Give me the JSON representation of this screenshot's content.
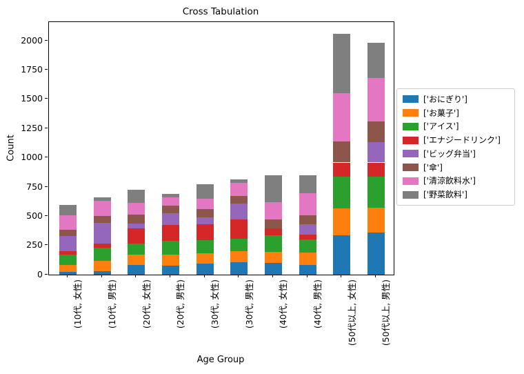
{
  "title": "Cross Tabulation",
  "chart_data": {
    "type": "bar",
    "stacked": true,
    "title": "Cross Tabulation",
    "xlabel": "Age Group",
    "ylabel": "Count",
    "ylim": [
      0,
      2160
    ],
    "yticks": [
      0,
      250,
      500,
      750,
      1000,
      1250,
      1500,
      1750,
      2000
    ],
    "grid": false,
    "legend_position": "right-outside",
    "categories": [
      "(10代, 女性)",
      "(10代, 男性)",
      "(20代, 女性)",
      "(20代, 男性)",
      "(30代, 女性)",
      "(30代, 男性)",
      "(40代, 女性)",
      "(40代, 男性)",
      "(50代以上, 女性)",
      "(50代以上, 男性)"
    ],
    "series": [
      {
        "name": "['おにぎり']",
        "color": "#1f77b4",
        "values": [
          25,
          30,
          85,
          80,
          95,
          110,
          100,
          85,
          340,
          360
        ]
      },
      {
        "name": "['お菓子']",
        "color": "#ff7f0e",
        "values": [
          60,
          90,
          90,
          90,
          90,
          95,
          95,
          105,
          230,
          215
        ]
      },
      {
        "name": "['アイス']",
        "color": "#2ca02c",
        "values": [
          85,
          110,
          90,
          120,
          110,
          105,
          140,
          110,
          270,
          265
        ]
      },
      {
        "name": "['エナジードリンク']",
        "color": "#d62728",
        "values": [
          30,
          40,
          130,
          135,
          140,
          165,
          60,
          45,
          120,
          120
        ]
      },
      {
        "name": "['ビッグ弁当']",
        "color": "#9467bd",
        "values": [
          130,
          175,
          45,
          100,
          55,
          135,
          0,
          90,
          0,
          175
        ]
      },
      {
        "name": "['傘']",
        "color": "#8c564b",
        "values": [
          55,
          60,
          75,
          65,
          70,
          65,
          80,
          75,
          180,
          175
        ]
      },
      {
        "name": "['清涼飲料水']",
        "color": "#e377c2",
        "values": [
          125,
          130,
          100,
          75,
          90,
          110,
          145,
          190,
          415,
          375
        ]
      },
      {
        "name": "['野菜飲料']",
        "color": "#7f7f7f",
        "values": [
          90,
          25,
          110,
          25,
          125,
          30,
          230,
          150,
          505,
          300
        ]
      }
    ]
  }
}
